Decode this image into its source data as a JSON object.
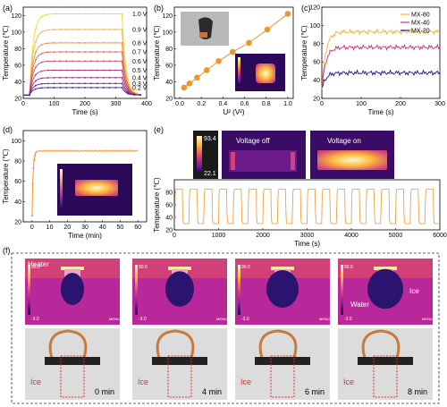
{
  "panel_labels": {
    "a": "(a)",
    "b": "(b)",
    "c": "(c)",
    "d": "(d)",
    "e": "(e)",
    "f": "(f)"
  },
  "chart_data": [
    {
      "id": "a",
      "type": "line",
      "xlabel": "Time (s)",
      "ylabel": "Temperature (℃)",
      "xlim": [
        0,
        400
      ],
      "ylim": [
        20,
        130
      ],
      "xticks": [
        "0",
        "100",
        "200",
        "300",
        "400"
      ],
      "yticks": [
        "20",
        "40",
        "60",
        "80",
        "100",
        "120"
      ],
      "series": [
        {
          "name": "1.0 V",
          "plateau": 122,
          "color": "#f9d32c"
        },
        {
          "name": "0.9 V",
          "plateau": 103,
          "color": "#f2b53b"
        },
        {
          "name": "0.8 V",
          "plateau": 87,
          "color": "#e68f4a"
        },
        {
          "name": "0.7 V",
          "plateau": 76,
          "color": "#d76a5a"
        },
        {
          "name": "0.6 V",
          "plateau": 65,
          "color": "#c65269"
        },
        {
          "name": "0.5 V",
          "plateau": 54,
          "color": "#b23d78"
        },
        {
          "name": "0.4 V",
          "plateau": 45,
          "color": "#962d86"
        },
        {
          "name": "0.3 V",
          "plateau": 38,
          "color": "#7a2191"
        },
        {
          "name": "0.2 V",
          "plateau": 33,
          "color": "#4c1a9a"
        }
      ]
    },
    {
      "id": "b",
      "type": "scatter",
      "xlabel": "U² (V²)",
      "ylabel": "Temperature (℃)",
      "xlim": [
        -0.05,
        1.05
      ],
      "ylim": [
        20,
        130
      ],
      "xticks": [
        "0.0",
        "0.2",
        "0.4",
        "0.6",
        "0.8",
        "1.0"
      ],
      "yticks": [
        "20",
        "40",
        "60",
        "80",
        "100",
        "120"
      ],
      "x": [
        0.04,
        0.09,
        0.16,
        0.25,
        0.36,
        0.49,
        0.64,
        0.81,
        1.0
      ],
      "y": [
        33,
        38,
        45,
        54,
        65,
        76,
        87,
        103,
        122
      ],
      "color": "#f0952c"
    },
    {
      "id": "c",
      "type": "line",
      "xlabel": "Time (s)",
      "ylabel": "Temperature (℃)",
      "xlim": [
        0,
        300
      ],
      "ylim": [
        20,
        120
      ],
      "xticks": [
        "0",
        "100",
        "200",
        "300"
      ],
      "yticks": [
        "20",
        "40",
        "60",
        "80",
        "100",
        "120"
      ],
      "series": [
        {
          "name": "MX-80",
          "plateau": 93,
          "color": "#f2b53b"
        },
        {
          "name": "MX-40",
          "plateau": 76,
          "color": "#c9327a"
        },
        {
          "name": "MX-20",
          "plateau": 48,
          "color": "#1a1a8c"
        }
      ]
    },
    {
      "id": "d",
      "type": "line",
      "xlabel": "Time (min)",
      "ylabel": "Temperature (℃)",
      "xlim": [
        -5,
        65
      ],
      "ylim": [
        20,
        110
      ],
      "xticks": [
        "0",
        "10",
        "20",
        "30",
        "40",
        "50",
        "60"
      ],
      "yticks": [
        "20",
        "40",
        "60",
        "80",
        "100"
      ],
      "series": [
        {
          "plateau": 90,
          "color": "#f0952c"
        }
      ]
    },
    {
      "id": "e",
      "type": "line",
      "xlabel": "Time (s)",
      "ylabel": "Temperature (℃)",
      "xlim": [
        0,
        6000
      ],
      "ylim": [
        20,
        100
      ],
      "xticks": [
        "0",
        "1000",
        "2000",
        "3000",
        "4000",
        "5000",
        "6000"
      ],
      "yticks": [
        "20",
        "40",
        "60",
        "80"
      ],
      "cycles": 18,
      "high": 85,
      "low": 30,
      "color": "#f0952c"
    }
  ],
  "thermal_e": {
    "max": "93.4",
    "min": "22.1",
    "off_label": "Voltage off",
    "on_label": "Voltage on"
  },
  "panel_f": {
    "heater_label": "Heater",
    "water_label": "Water",
    "ice_label": "Ice",
    "scale_max": "90.0",
    "scale_min": "-3.0",
    "menu": "MENU",
    "times": [
      "0 min",
      "4 min",
      "6 min",
      "8 min"
    ],
    "photo_ice_label": "Ice"
  }
}
